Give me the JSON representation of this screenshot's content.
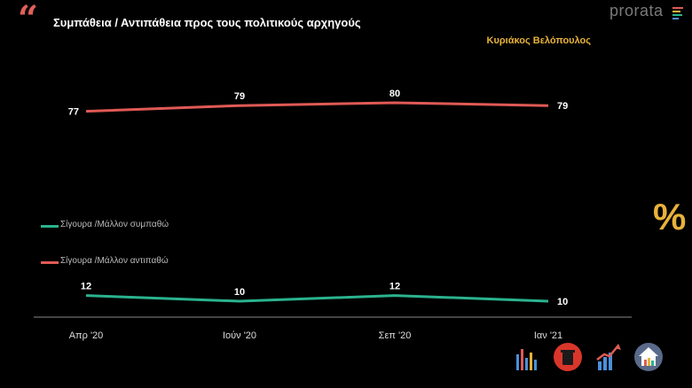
{
  "header": {
    "title": "Συμπάθεια / Αντιπάθεια προς τους πολιτικούς αρχηγούς",
    "subject": "Κυριάκος Βελόπουλος",
    "logo": "prorata",
    "percent_symbol": "%"
  },
  "colors": {
    "accent": "#e8b23a",
    "positive": "#2ab38e",
    "negative": "#e05a55",
    "axis": "#8a8a8a"
  },
  "chart_data": {
    "type": "line",
    "categories": [
      "Απρ '20",
      "Ιούν '20",
      "Σεπ '20",
      "Ιαν '21"
    ],
    "series": [
      {
        "name": "Σίγουρα /Μάλλον αντιπαθώ",
        "values": [
          77,
          79,
          80,
          79
        ],
        "color": "#e05a55"
      },
      {
        "name": "Σίγουρα /Μάλλον συμπαθώ",
        "values": [
          12,
          10,
          12,
          10
        ],
        "color": "#2ab38e"
      }
    ],
    "xlabel": "",
    "ylabel": "",
    "ylim": [
      0,
      90
    ],
    "grid": false,
    "data_labels": true,
    "legend_position": "left-middle"
  },
  "icons": [
    "bar-chart-icon",
    "trash-can-icon",
    "rising-graph-icon",
    "house-chart-icon"
  ]
}
